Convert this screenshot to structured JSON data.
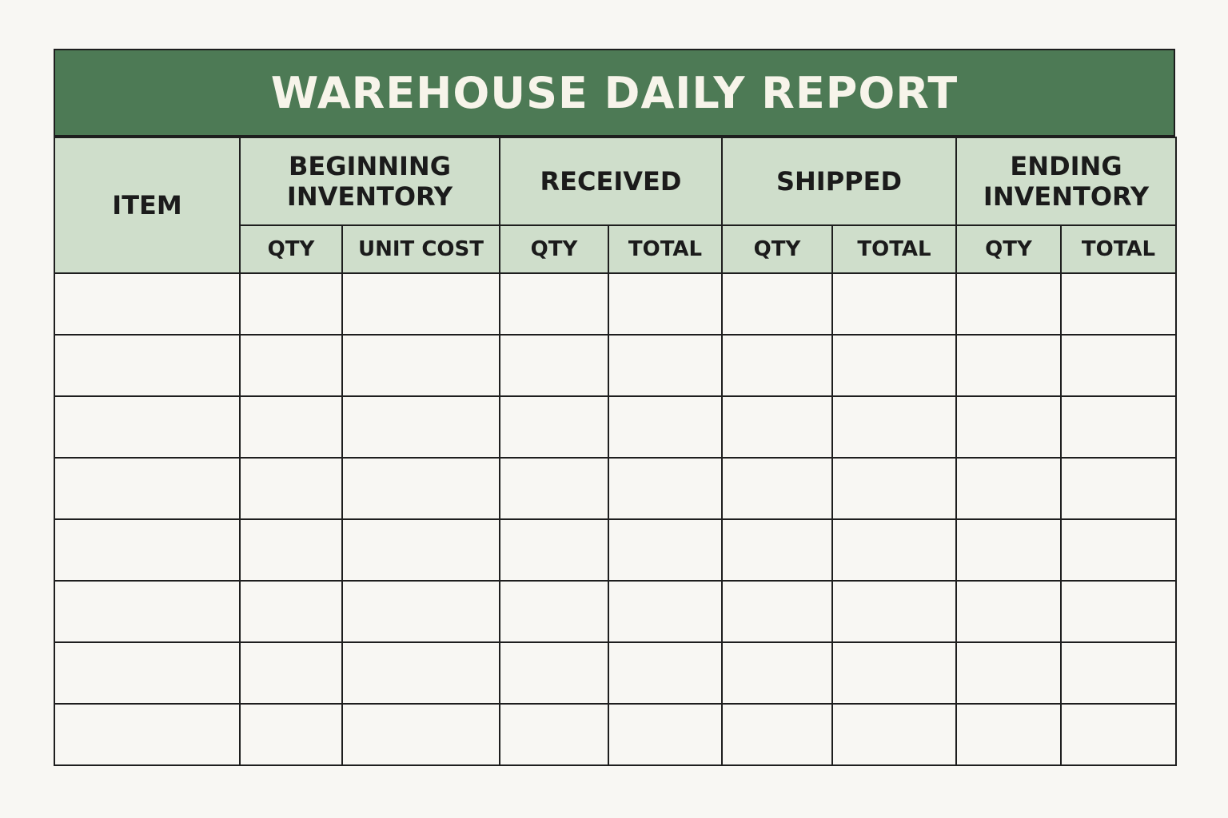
{
  "title": "WAREHOUSE DAILY REPORT",
  "columns": {
    "item": "ITEM",
    "beginning_inventory": {
      "label_line1": "BEGINNING",
      "label_line2": "INVENTORY",
      "sub": [
        "QTY",
        "UNIT COST"
      ]
    },
    "received": {
      "label": "RECEIVED",
      "sub": [
        "QTY",
        "TOTAL"
      ]
    },
    "shipped": {
      "label": "SHIPPED",
      "sub": [
        "QTY",
        "TOTAL"
      ]
    },
    "ending_inventory": {
      "label_line1": "ENDING",
      "label_line2": "INVENTORY",
      "sub": [
        "QTY",
        "TOTAL"
      ]
    }
  },
  "rows": [
    [
      "",
      "",
      "",
      "",
      "",
      "",
      "",
      "",
      ""
    ],
    [
      "",
      "",
      "",
      "",
      "",
      "",
      "",
      "",
      ""
    ],
    [
      "",
      "",
      "",
      "",
      "",
      "",
      "",
      "",
      ""
    ],
    [
      "",
      "",
      "",
      "",
      "",
      "",
      "",
      "",
      ""
    ],
    [
      "",
      "",
      "",
      "",
      "",
      "",
      "",
      "",
      ""
    ],
    [
      "",
      "",
      "",
      "",
      "",
      "",
      "",
      "",
      ""
    ],
    [
      "",
      "",
      "",
      "",
      "",
      "",
      "",
      "",
      ""
    ],
    [
      "",
      "",
      "",
      "",
      "",
      "",
      "",
      "",
      ""
    ]
  ],
  "colors": {
    "title_bg": "#4d7a55",
    "header_bg": "#cfdecb",
    "border": "#1e1e1e",
    "paper": "#f8f7f3"
  }
}
